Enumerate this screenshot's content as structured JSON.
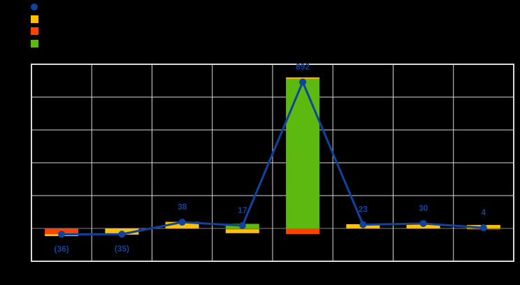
{
  "app": {
    "background_color": "#000000"
  },
  "legend": {
    "position": "top-left",
    "labels_visible": false,
    "items": [
      {
        "name": "line-series",
        "marker": "circle",
        "color": "#10439F"
      },
      {
        "name": "yellow-bar-series",
        "marker": "square",
        "color": "#FFC000"
      },
      {
        "name": "orange-bar-series",
        "marker": "square",
        "color": "#FF4200"
      },
      {
        "name": "green-bar-series",
        "marker": "square",
        "color": "#5CB90F"
      }
    ]
  },
  "chart_data": {
    "type": "bar",
    "subtype": "stacked-column-with-line-overlay",
    "title": "",
    "xlabel": "",
    "ylabel": "",
    "num_categories": 8,
    "categories": [
      "",
      "",
      "",
      "",
      "",
      "",
      "",
      ""
    ],
    "x_tick_labels_visible": false,
    "y_tick_labels_visible": false,
    "ylim": [
      -200,
      1000
    ],
    "y_step": 200,
    "grid": {
      "horizontal": true,
      "vertical": true,
      "color": "#D9D9D9",
      "zero_line_color": "#808080",
      "border_color": "#D9D9D9"
    },
    "series": [
      {
        "id": "green",
        "type": "bar",
        "color": "#5CB90F",
        "values": [
          0,
          0,
          0,
          28,
          911,
          0,
          0,
          2
        ]
      },
      {
        "id": "orange",
        "type": "bar",
        "color": "#FF4200",
        "values": [
          -34,
          0,
          0,
          -5,
          -34,
          0,
          0,
          -6
        ]
      },
      {
        "id": "yellow",
        "type": "bar",
        "color": "#FFC000",
        "values": [
          -13,
          -38,
          40,
          -24,
          9,
          26,
          28,
          19
        ]
      },
      {
        "id": "line",
        "type": "line",
        "color": "#10439F",
        "values": [
          -36,
          -35,
          38,
          17,
          892,
          23,
          30,
          4
        ],
        "labels": [
          "(36)",
          "(35)",
          "38",
          "17",
          "892",
          "23",
          "30",
          "4"
        ],
        "label_color": "#10439F",
        "marker": "circle"
      }
    ],
    "bar_stack_order": [
      "green",
      "orange",
      "yellow"
    ],
    "legend_position": "top-left"
  }
}
